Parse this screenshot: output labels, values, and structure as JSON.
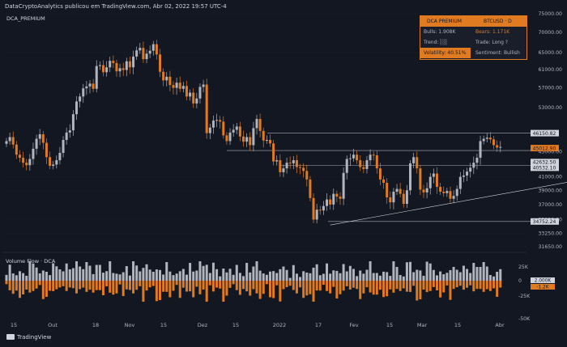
{
  "header": {
    "text": "DataCryptoAnalytics publicou em TradingView.com, Abr 02, 2022 19:57 UTC-4"
  },
  "chart_title": "DCA_PREMIUM",
  "volume_title": "Volume Flow · DCA",
  "logo_text": "TradingView",
  "colors": {
    "up": "#b2b5be",
    "down": "#e07b21",
    "background": "#131722",
    "accent": "#e07b21",
    "grid": "#2a2e39"
  },
  "info_panel": {
    "rows": [
      {
        "left": "DCA PREMIUM",
        "right": "BTCUSD · D",
        "highlight": true
      },
      {
        "left": "Bulls: 1.908K",
        "right": "Bears: 1.171K",
        "highlight": false
      },
      {
        "left": "Trend: ░░",
        "right": "Trade: Long ?",
        "highlight": false
      },
      {
        "left": "Volatility: 40.51%",
        "right": "Sentiment: Bullish",
        "highlight": false,
        "left_accent": true
      }
    ]
  },
  "chart_data": {
    "type": "candlestick",
    "y_axis": {
      "ticks": [
        75000,
        70000,
        65000,
        61000,
        57000,
        53000,
        45000,
        41000,
        39000,
        37000,
        35000,
        33250,
        31650
      ],
      "scale": "log"
    },
    "x_axis": {
      "ticks": [
        "15",
        "Out",
        "18",
        "Nov",
        "15",
        "Dez",
        "15",
        "2022",
        "17",
        "Fev",
        "15",
        "Mar",
        "15",
        "Abr"
      ]
    },
    "price_labels": [
      {
        "value": "46150.82",
        "price": 48200,
        "color": "#d1d4dc"
      },
      {
        "value": "45012.90",
        "price": 45600,
        "color": "#e07b21"
      },
      {
        "value": "42632.50",
        "price": 43300,
        "color": "#d1d4dc"
      },
      {
        "value": "40532.10",
        "price": 42400,
        "color": "#d1d4dc"
      },
      {
        "value": "34752.24",
        "price": 34750,
        "color": "#d1d4dc"
      }
    ],
    "horizontal_levels": [
      48200,
      45200,
      42800,
      34750
    ],
    "trendline": {
      "from": [
        57,
        34300
      ],
      "to": [
        148,
        42000
      ]
    },
    "closes": [
      46800,
      47500,
      46200,
      44500,
      44000,
      43200,
      42800,
      43800,
      45500,
      47200,
      48000,
      46500,
      44100,
      42700,
      42900,
      43600,
      44800,
      47000,
      48300,
      48700,
      51700,
      54200,
      55200,
      56900,
      57300,
      57900,
      56800,
      61800,
      62000,
      60400,
      61500,
      63000,
      62500,
      60600,
      61300,
      60900,
      62900,
      61500,
      64000,
      65500,
      66100,
      63400,
      64700,
      65400,
      67000,
      64500,
      60500,
      58600,
      59400,
      57600,
      57000,
      58100,
      56800,
      57400,
      55200,
      56000,
      53800,
      54800,
      57200,
      57700,
      48200,
      49200,
      50500,
      50600,
      50300,
      47800,
      46800,
      48300,
      48800,
      49400,
      47600,
      46700,
      47500,
      46100,
      49100,
      50800,
      48600,
      46900,
      47000,
      46400,
      43400,
      43600,
      41700,
      42300,
      43200,
      43100,
      43600,
      42500,
      42400,
      41900,
      40600,
      37900,
      35000,
      36300,
      36200,
      36800,
      37700,
      37000,
      38500,
      38100,
      37800,
      41600,
      43800,
      43900,
      44500,
      43600,
      42500,
      42200,
      43600,
      44500,
      44400,
      42300,
      40600,
      40100,
      38000,
      37300,
      38800,
      39200,
      38500,
      37100,
      39000,
      43100,
      44100,
      42300,
      39100,
      38700,
      39300,
      41000,
      41500,
      39500,
      38800,
      38600,
      38900,
      37800,
      38200,
      39200,
      41000,
      41200,
      41800,
      42400,
      43200,
      44000,
      46800,
      47200,
      47400,
      47100,
      46100,
      45700,
      45800
    ]
  },
  "volume_axis": {
    "ticks": [
      "25K",
      "0",
      "-25K",
      "-50K"
    ],
    "labels": [
      {
        "value": "2.000K",
        "color": "#d1d4dc"
      },
      {
        "value": "-1.2K",
        "color": "#e07b21"
      }
    ]
  }
}
